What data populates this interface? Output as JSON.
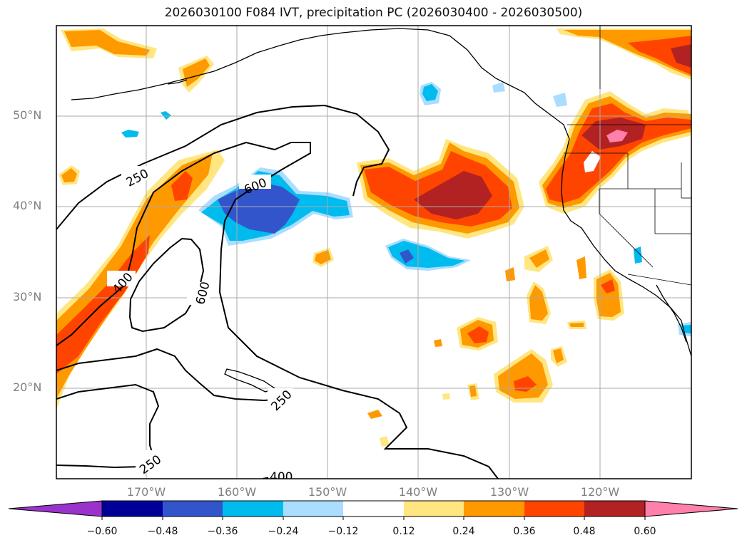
{
  "title": "2026030100 F084 IVT, precipitation PC (2026030400 - 2026030500)",
  "axes": {
    "lat_labels": [
      "50°N",
      "40°N",
      "30°N",
      "20°N"
    ],
    "lon_labels": [
      "170°W",
      "160°W",
      "150°W",
      "140°W",
      "130°W",
      "120°W"
    ]
  },
  "contour_labels": [
    "250",
    "600",
    "400",
    "600",
    "250",
    "250",
    "400"
  ],
  "colorbar": {
    "ticks": [
      "−0.60",
      "−0.48",
      "−0.36",
      "−0.24",
      "−0.12",
      "0.12",
      "0.24",
      "0.36",
      "0.48",
      "0.60"
    ],
    "colors": [
      "#9933cc",
      "#000099",
      "#3355cc",
      "#00bbee",
      "#aaddff",
      "#ffffff",
      "#ffe680",
      "#ff9900",
      "#ff4400",
      "#b22222",
      "#ff80aa"
    ]
  },
  "palette": {
    "pos1": "#ffe680",
    "pos2": "#ff9900",
    "pos3": "#ff4400",
    "pos4": "#b22222",
    "pos5": "#ff80aa",
    "neg1": "#aaddff",
    "neg2": "#00bbee",
    "neg3": "#3355cc"
  }
}
